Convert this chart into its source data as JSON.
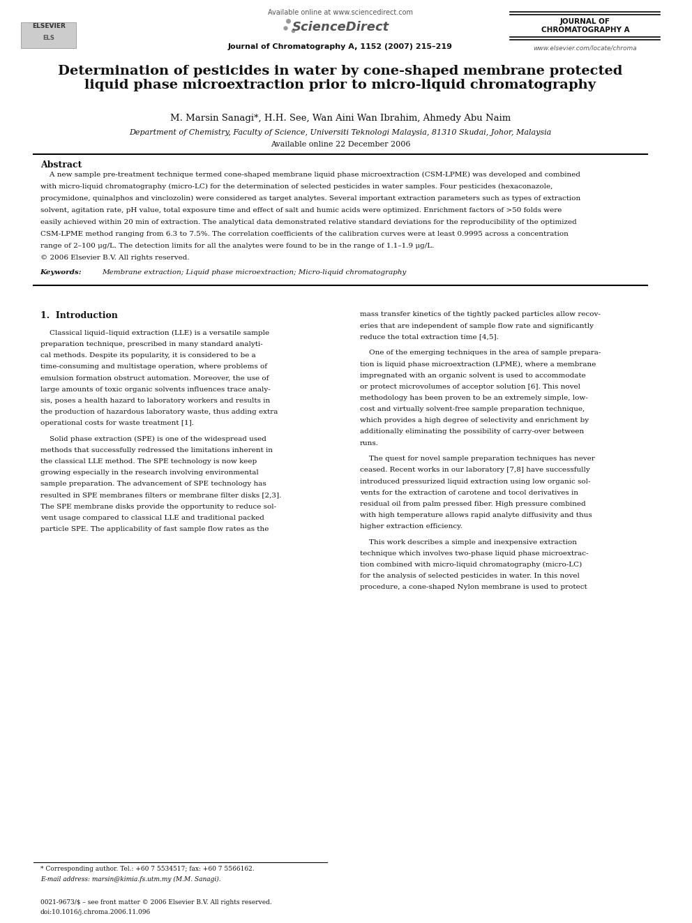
{
  "page_width": 9.92,
  "page_height": 13.23,
  "background_color": "#ffffff",
  "header": {
    "available_online_text": "Available online at www.sciencedirect.com",
    "sciencedirect_text": "ScienceDirect",
    "journal_name_line1": "JOURNAL OF",
    "journal_name_line2": "CHROMATOGRAPHY A",
    "journal_info": "Journal of Chromatography A, 1152 (2007) 215–219",
    "website": "www.elsevier.com/locate/chroma"
  },
  "title": "Determination of pesticides in water by cone-shaped membrane protected\nliquid phase microextraction prior to micro-liquid chromatography",
  "authors": "M. Marsin Sanagi*, H.H. See, Wan Aini Wan Ibrahim, Ahmedy Abu Naim",
  "affiliation": "Department of Chemistry, Faculty of Science, Universiti Teknologi Malaysia, 81310 Skudai, Johor, Malaysia",
  "available_online": "Available online 22 December 2006",
  "abstract_title": "Abstract",
  "keywords_label": "Keywords:",
  "keywords_text": "Membrane extraction; Liquid phase microextraction; Micro-liquid chromatography",
  "section1_title": "1.  Introduction",
  "footnote_star": "* Corresponding author. Tel.: +60 7 5534517; fax: +60 7 5566162.",
  "footnote_email": "E-mail address: marsin@kimia.fs.utm.my (M.M. Sanagi).",
  "footer_issn": "0021-9673/$ – see front matter © 2006 Elsevier B.V. All rights reserved.",
  "footer_doi": "doi:10.1016/j.chroma.2006.11.096"
}
